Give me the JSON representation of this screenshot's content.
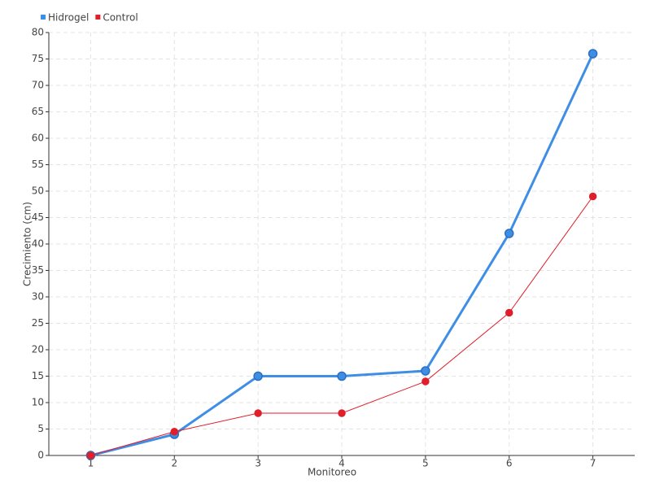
{
  "chart_data": {
    "type": "line",
    "x_label": "Monitoreo",
    "y_label": "Crecimiento (cm)",
    "x": [
      1,
      2,
      3,
      4,
      5,
      6,
      7
    ],
    "xlim": [
      0.5,
      7.5
    ],
    "xticks": [
      1,
      2,
      3,
      4,
      5,
      6,
      7
    ],
    "ylim": [
      0,
      80
    ],
    "yticks": [
      0,
      5,
      10,
      15,
      20,
      25,
      30,
      35,
      40,
      45,
      50,
      55,
      60,
      65,
      70,
      75,
      80
    ],
    "grid": true,
    "legend": "top-left",
    "series": [
      {
        "name": "Hidrogel",
        "color": "#3f8ee6",
        "values": [
          0,
          4,
          15,
          15,
          16,
          42,
          76
        ]
      },
      {
        "name": "Control",
        "color": "#e01f2b",
        "values": [
          0,
          4.5,
          8,
          8,
          14,
          27,
          49
        ]
      }
    ]
  }
}
